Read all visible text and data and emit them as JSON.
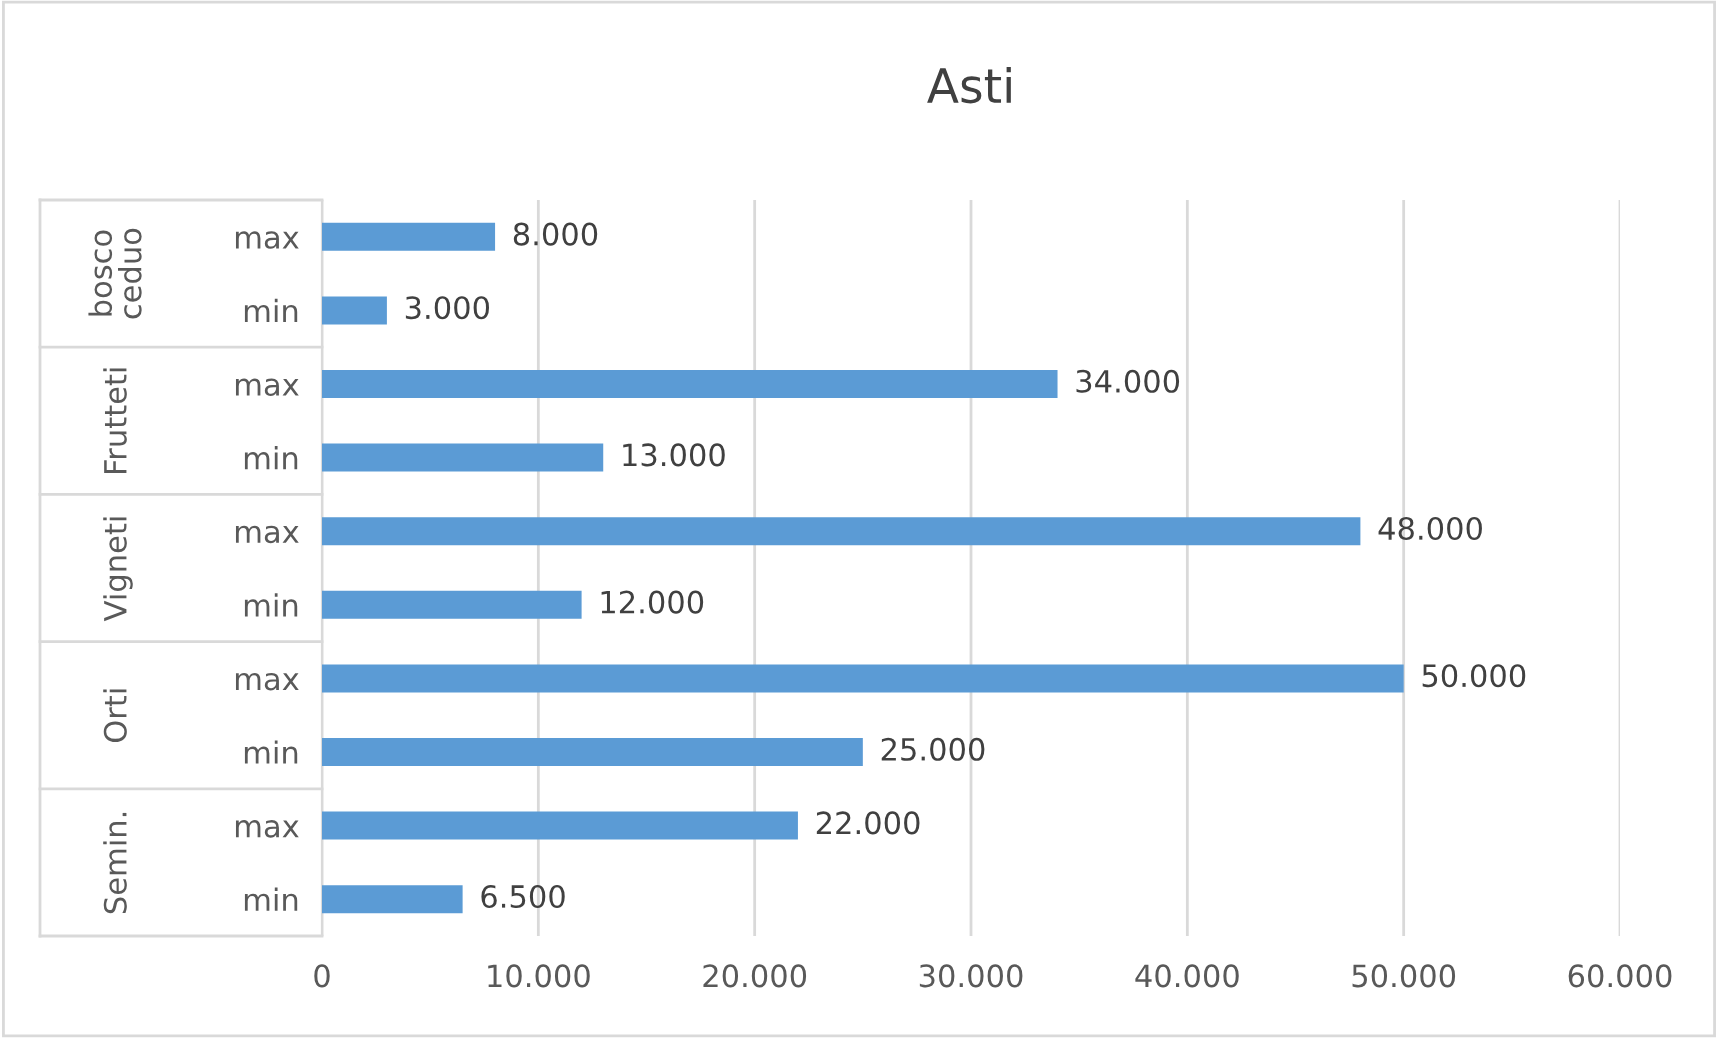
{
  "chart_data": {
    "type": "bar",
    "orientation": "horizontal",
    "title": "Asti",
    "categories": [
      "max",
      "min",
      "max",
      "min",
      "max",
      "min",
      "max",
      "min",
      "max",
      "min"
    ],
    "values": [
      8000,
      3000,
      34000,
      13000,
      48000,
      12000,
      50000,
      25000,
      22000,
      6500
    ],
    "value_labels": [
      "8.000",
      "3.000",
      "34.000",
      "13.000",
      "48.000",
      "12.000",
      "50.000",
      "25.000",
      "22.000",
      "6.500"
    ],
    "color": "#5b9bd5",
    "annotations": [
      "bosco ceduo",
      "Frutteti",
      "Vigneti",
      "Orti",
      "Semin."
    ],
    "xlim": [
      0,
      60000
    ],
    "xticks": [
      0,
      {
        "value": 10000,
        "label": "10.000"
      },
      {
        "value": 20000,
        "label": "20.000"
      },
      {
        "value": 30000,
        "label": "30.000"
      },
      {
        "value": 40000,
        "label": "40.000"
      },
      {
        "value": 50000,
        "label": "50.000"
      },
      {
        "value": 60000,
        "label": "60.000"
      }
    ],
    "grid": "x"
  }
}
